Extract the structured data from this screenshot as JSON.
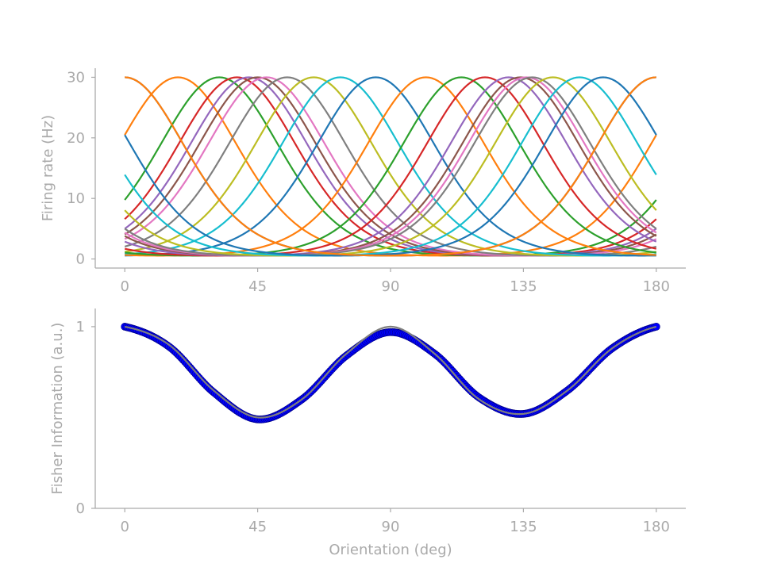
{
  "colors": {
    "axis": "#aaaaaa",
    "cycle": [
      "#1f77b4",
      "#ff7f0e",
      "#2ca02c",
      "#d62728",
      "#9467bd",
      "#8c564b",
      "#e377c2",
      "#7f7f7f",
      "#bcbd22",
      "#17becf"
    ],
    "fisher_model": "#7f7f7f",
    "fisher_points": "#0000ff",
    "fisher_points_edge": "#000080"
  },
  "chart_data": [
    {
      "type": "line",
      "xlabel": "",
      "ylabel": "Firing rate (Hz)",
      "xlim": [
        -10,
        190
      ],
      "ylim": [
        -1.5,
        31.5
      ],
      "xticks": [
        0,
        45,
        90,
        135,
        180
      ],
      "xtick_labels": [
        "0",
        "45",
        "90",
        "135",
        "180"
      ],
      "yticks": [
        0,
        10,
        20,
        30
      ],
      "ytick_labels": [
        "0",
        "10",
        "20",
        "30"
      ],
      "tuning_model": "von Mises curves, period 180 deg",
      "peak_rate": 30,
      "preferred_orientations": [
        0,
        18,
        32,
        38,
        42,
        45,
        48,
        55,
        64,
        73,
        85,
        102,
        114,
        122,
        130,
        134,
        136,
        138,
        145,
        154,
        162,
        180
      ],
      "grid": false,
      "legend": "none"
    },
    {
      "type": "line",
      "xlabel": "Orientation (deg)",
      "ylabel": "Fisher Information (a.u.)",
      "xlim": [
        -10,
        190
      ],
      "ylim": [
        0,
        1.1
      ],
      "xticks": [
        0,
        45,
        90,
        135,
        180
      ],
      "xtick_labels": [
        "0",
        "45",
        "90",
        "135",
        "180"
      ],
      "yticks": [
        0,
        1
      ],
      "ytick_labels": [
        "0",
        "1"
      ],
      "series": [
        {
          "kind": "line",
          "x": [
            0,
            15,
            30,
            45,
            60,
            75,
            90,
            105,
            120,
            135,
            150,
            165,
            180
          ],
          "y": [
            1.0,
            0.9,
            0.65,
            0.5,
            0.6,
            0.85,
            1.0,
            0.85,
            0.6,
            0.52,
            0.65,
            0.88,
            1.0
          ]
        },
        {
          "kind": "scatter",
          "x": [
            0,
            15,
            30,
            45,
            60,
            75,
            90,
            105,
            120,
            135,
            150,
            165,
            180
          ],
          "y": [
            1.0,
            0.89,
            0.64,
            0.49,
            0.6,
            0.84,
            0.97,
            0.85,
            0.61,
            0.52,
            0.65,
            0.88,
            1.0
          ]
        }
      ],
      "grid": false,
      "legend": "none"
    }
  ]
}
